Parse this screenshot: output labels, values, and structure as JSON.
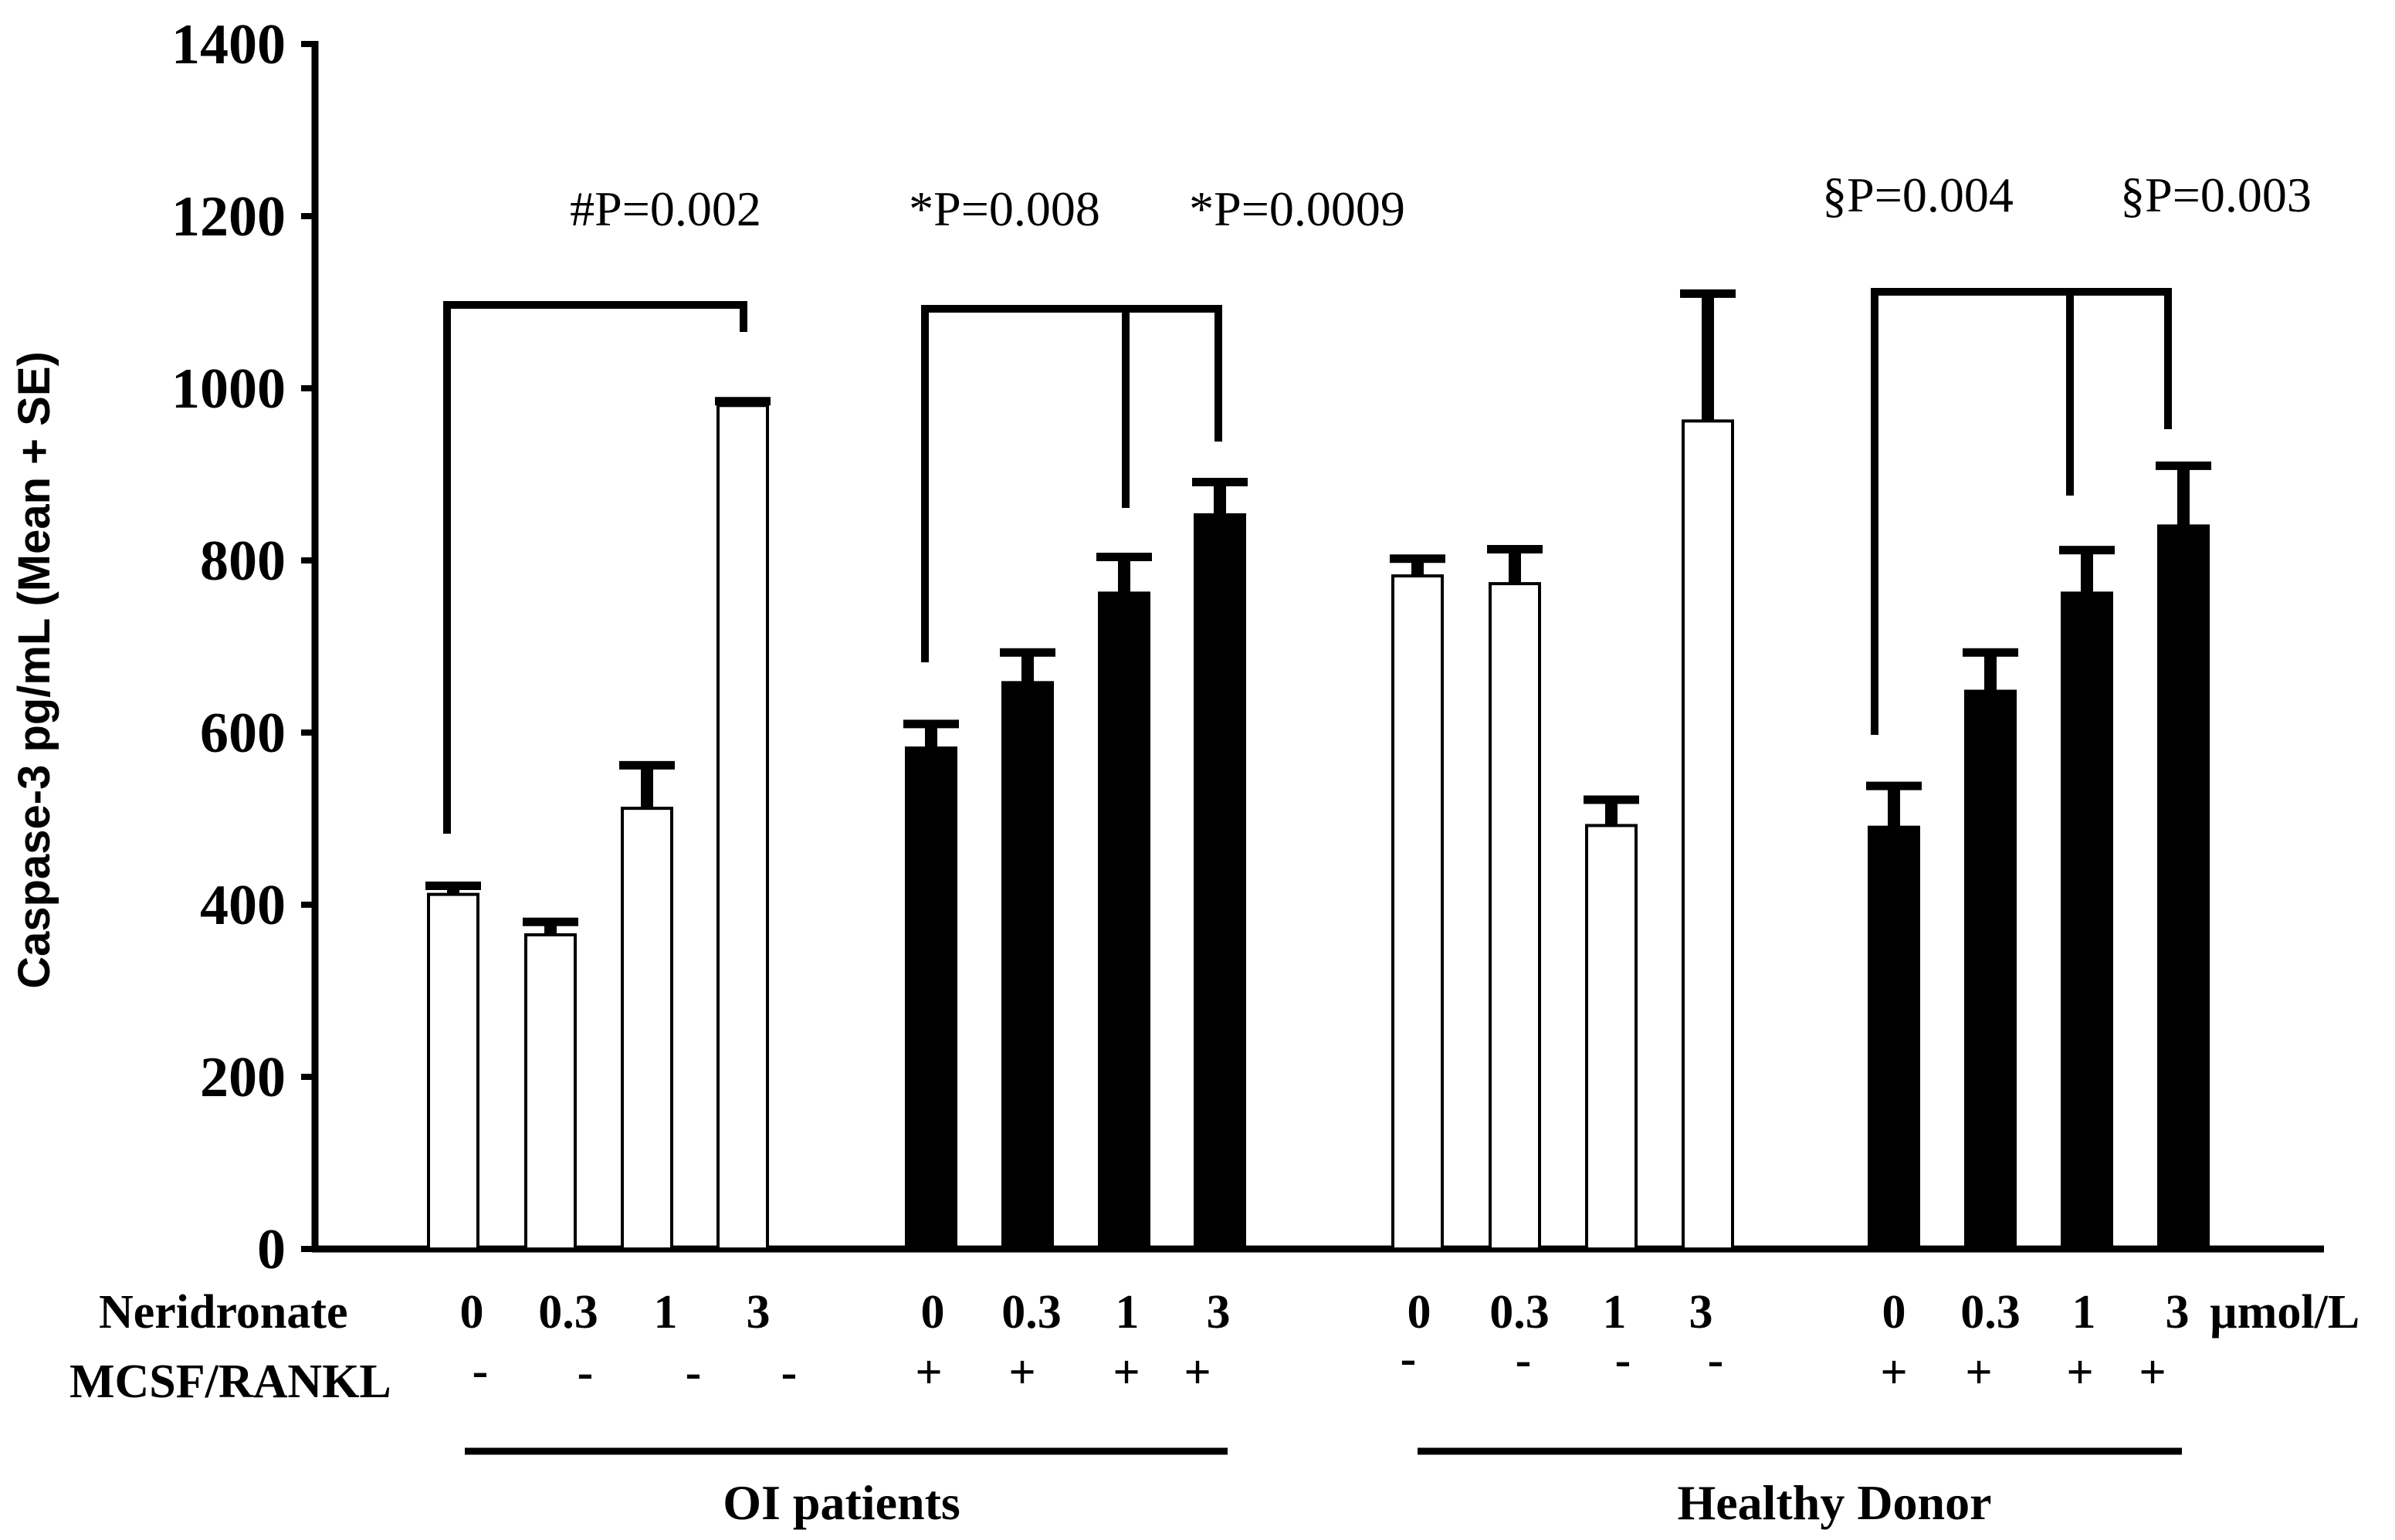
{
  "chart_data": {
    "type": "bar",
    "ylabel": "Caspase-3 pg/mL (Mean + SE)",
    "ylim": [
      0,
      1400
    ],
    "yticks": [
      0,
      200,
      400,
      600,
      800,
      1000,
      1200,
      1400
    ],
    "grid": false,
    "row_labels": {
      "neridronate": "Neridronate",
      "mcsf": "MCSF/RANKL",
      "unit": "µmol/L"
    },
    "groups": [
      {
        "name": "OI patients",
        "bars": [
          {
            "dose": "0",
            "mcsf": "-",
            "value": 412,
            "se": 10,
            "fill": "#ffffff"
          },
          {
            "dose": "0.3",
            "mcsf": "-",
            "value": 365,
            "se": 15,
            "fill": "#ffffff"
          },
          {
            "dose": "1",
            "mcsf": "-",
            "value": 512,
            "se": 50,
            "fill": "#ffffff"
          },
          {
            "dose": "3",
            "mcsf": "-",
            "value": 980,
            "se": 5,
            "fill": "#ffffff"
          },
          {
            "dose": "0",
            "mcsf": "+",
            "value": 582,
            "se": 28,
            "fill": "#000000"
          },
          {
            "dose": "0.3",
            "mcsf": "+",
            "value": 658,
            "se": 35,
            "fill": "#000000"
          },
          {
            "dose": "1",
            "mcsf": "+",
            "value": 762,
            "se": 42,
            "fill": "#000000"
          },
          {
            "dose": "3",
            "mcsf": "+",
            "value": 853,
            "se": 38,
            "fill": "#000000"
          }
        ]
      },
      {
        "name": "Healthy Donor",
        "bars": [
          {
            "dose": "0",
            "mcsf": "-",
            "value": 782,
            "se": 20,
            "fill": "#ffffff"
          },
          {
            "dose": "0.3",
            "mcsf": "-",
            "value": 773,
            "se": 40,
            "fill": "#ffffff"
          },
          {
            "dose": "1",
            "mcsf": "-",
            "value": 492,
            "se": 30,
            "fill": "#ffffff"
          },
          {
            "dose": "3",
            "mcsf": "-",
            "value": 962,
            "se": 148,
            "fill": "#ffffff"
          },
          {
            "dose": "0",
            "mcsf": "+",
            "value": 490,
            "se": 48,
            "fill": "#000000"
          },
          {
            "dose": "0.3",
            "mcsf": "+",
            "value": 648,
            "se": 45,
            "fill": "#000000"
          },
          {
            "dose": "1",
            "mcsf": "+",
            "value": 762,
            "se": 50,
            "fill": "#000000"
          },
          {
            "dose": "3",
            "mcsf": "+",
            "value": 840,
            "se": 70,
            "fill": "#000000"
          }
        ]
      }
    ],
    "annotations": [
      {
        "label": "#P=0.002"
      },
      {
        "label": "*P=0.008"
      },
      {
        "label": "*P=0.0009"
      },
      {
        "label": "§P=0.004"
      },
      {
        "label": "§P=0.003"
      }
    ]
  }
}
